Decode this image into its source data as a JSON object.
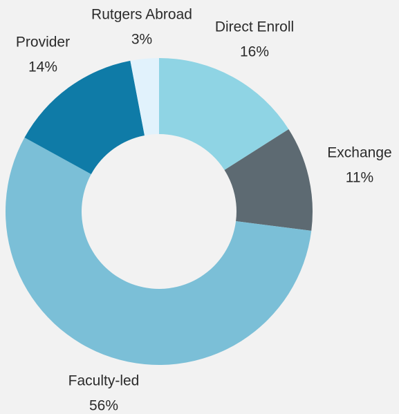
{
  "chart_data": {
    "type": "donut",
    "categories": [
      "Direct Enroll",
      "Exchange",
      "Faculty-led",
      "Provider",
      "Rutgers Abroad"
    ],
    "values": [
      16,
      11,
      56,
      14,
      3
    ],
    "value_labels": [
      "16%",
      "11%",
      "56%",
      "14%",
      "3%"
    ],
    "colors": [
      "#8fd4e4",
      "#5d6a72",
      "#7bbfd7",
      "#0f7ba7",
      "#e1f2fc"
    ]
  }
}
